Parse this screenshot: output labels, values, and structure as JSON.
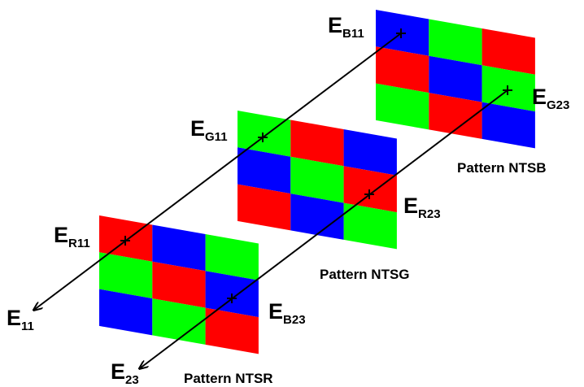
{
  "colors": {
    "red": "#ff0000",
    "green": "#00ff00",
    "blue": "#0000ff"
  },
  "patterns": [
    {
      "name": "NTSR",
      "caption": "Pattern NTSR",
      "grid": [
        [
          "red",
          "blue",
          "green"
        ],
        [
          "green",
          "red",
          "blue"
        ],
        [
          "blue",
          "green",
          "red"
        ]
      ]
    },
    {
      "name": "NTSG",
      "caption": "Pattern NTSG",
      "grid": [
        [
          "green",
          "red",
          "blue"
        ],
        [
          "blue",
          "green",
          "red"
        ],
        [
          "red",
          "blue",
          "green"
        ]
      ]
    },
    {
      "name": "NTSB",
      "caption": "Pattern NTSB",
      "grid": [
        [
          "blue",
          "green",
          "red"
        ],
        [
          "red",
          "blue",
          "green"
        ],
        [
          "green",
          "red",
          "blue"
        ]
      ]
    }
  ],
  "labels": {
    "e11": {
      "main": "E",
      "sub": "11"
    },
    "e23": {
      "main": "E",
      "sub": "23"
    },
    "er11": {
      "main": "E",
      "sub": "R11"
    },
    "eg11": {
      "main": "E",
      "sub": "G11"
    },
    "eb11": {
      "main": "E",
      "sub": "B11"
    },
    "eb23": {
      "main": "E",
      "sub": "B23"
    },
    "er23": {
      "main": "E",
      "sub": "R23"
    },
    "eg23": {
      "main": "E",
      "sub": "G23"
    }
  }
}
